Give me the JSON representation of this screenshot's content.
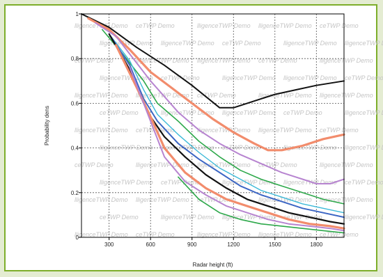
{
  "chart_data": {
    "type": "line",
    "title": "",
    "xlabel": "Radar height (ft)",
    "ylabel": "Probability dens",
    "xlim": [
      100,
      2000
    ],
    "ylim": [
      0,
      1.0
    ],
    "xticks": [
      300,
      600,
      900,
      1200,
      1500,
      1800
    ],
    "yticks": [
      0,
      0.2,
      0.4,
      0.6,
      0.8,
      1
    ],
    "grid": true,
    "watermark_text": [
      "lligenceTWP Demo",
      "ceTWP Demo",
      "lligenceTWP Demo"
    ],
    "series": [
      {
        "color": "#111111",
        "width": 2.0,
        "x": [
          100,
          300,
          500,
          700,
          900,
          1100,
          1200,
          1350,
          1500,
          1650,
          1800,
          2000
        ],
        "y": [
          1.0,
          0.94,
          0.85,
          0.77,
          0.68,
          0.58,
          0.58,
          0.61,
          0.64,
          0.66,
          0.68,
          0.7
        ]
      },
      {
        "color": "#f28c6c",
        "width": 3.2,
        "x": [
          150,
          300,
          450,
          600,
          750,
          900,
          1050,
          1200,
          1350,
          1450,
          1550,
          1700,
          1850,
          2000
        ],
        "y": [
          0.98,
          0.93,
          0.84,
          0.74,
          0.67,
          0.6,
          0.53,
          0.47,
          0.42,
          0.39,
          0.39,
          0.41,
          0.44,
          0.46
        ]
      },
      {
        "color": "#b784d0",
        "width": 2.0,
        "x": [
          200,
          350,
          500,
          600,
          700,
          800,
          950,
          1100,
          1250,
          1400,
          1550,
          1700,
          1800,
          1900,
          2000
        ],
        "y": [
          0.96,
          0.9,
          0.78,
          0.7,
          0.63,
          0.56,
          0.48,
          0.42,
          0.37,
          0.33,
          0.29,
          0.26,
          0.24,
          0.24,
          0.26
        ]
      },
      {
        "color": "#2da84a",
        "width": 1.6,
        "x": [
          250,
          400,
          550,
          650,
          800,
          950,
          1100,
          1250,
          1400,
          1550,
          1700,
          1850,
          2000
        ],
        "y": [
          0.93,
          0.82,
          0.7,
          0.6,
          0.52,
          0.43,
          0.36,
          0.3,
          0.26,
          0.23,
          0.2,
          0.17,
          0.15
        ]
      },
      {
        "color": "#3cb9d8",
        "width": 1.4,
        "x": [
          300,
          450,
          550,
          650,
          800,
          950,
          1100,
          1250,
          1400,
          1550,
          1700,
          1850,
          2000
        ],
        "y": [
          0.91,
          0.79,
          0.66,
          0.55,
          0.46,
          0.38,
          0.31,
          0.26,
          0.21,
          0.18,
          0.15,
          0.13,
          0.11
        ]
      },
      {
        "color": "#3c66c4",
        "width": 2.0,
        "x": [
          300,
          450,
          550,
          650,
          800,
          950,
          1100,
          1250,
          1400,
          1550,
          1700,
          1850,
          2000
        ],
        "y": [
          0.91,
          0.77,
          0.62,
          0.52,
          0.42,
          0.35,
          0.29,
          0.23,
          0.19,
          0.16,
          0.13,
          0.11,
          0.09
        ]
      },
      {
        "color": "#111111",
        "width": 2.2,
        "x": [
          300,
          450,
          550,
          600,
          700,
          850,
          1000,
          1150,
          1300,
          1450,
          1600,
          1750,
          1900,
          2000
        ],
        "y": [
          0.91,
          0.75,
          0.6,
          0.54,
          0.45,
          0.36,
          0.28,
          0.22,
          0.17,
          0.14,
          0.11,
          0.09,
          0.07,
          0.06
        ]
      },
      {
        "color": "#f28c6c",
        "width": 3.2,
        "x": [
          350,
          500,
          600,
          700,
          850,
          1000,
          1150,
          1300,
          1450,
          1600,
          1750,
          1900,
          2000
        ],
        "y": [
          0.86,
          0.67,
          0.54,
          0.4,
          0.29,
          0.22,
          0.17,
          0.14,
          0.11,
          0.08,
          0.06,
          0.05,
          0.04
        ]
      },
      {
        "color": "#b784d0",
        "width": 2.0,
        "x": [
          450,
          600,
          700,
          850,
          1000,
          1150,
          1300,
          1450,
          1600,
          1750,
          1900,
          2000
        ],
        "y": [
          0.76,
          0.52,
          0.36,
          0.25,
          0.19,
          0.14,
          0.11,
          0.08,
          0.06,
          0.05,
          0.04,
          0.03
        ]
      },
      {
        "color": "#2da84a",
        "width": 1.6,
        "x": [
          800,
          950,
          1100,
          1250,
          1400,
          1550,
          1700,
          1850,
          2000
        ],
        "y": [
          0.27,
          0.17,
          0.11,
          0.08,
          0.06,
          0.05,
          0.04,
          0.03,
          0.02
        ]
      }
    ]
  }
}
